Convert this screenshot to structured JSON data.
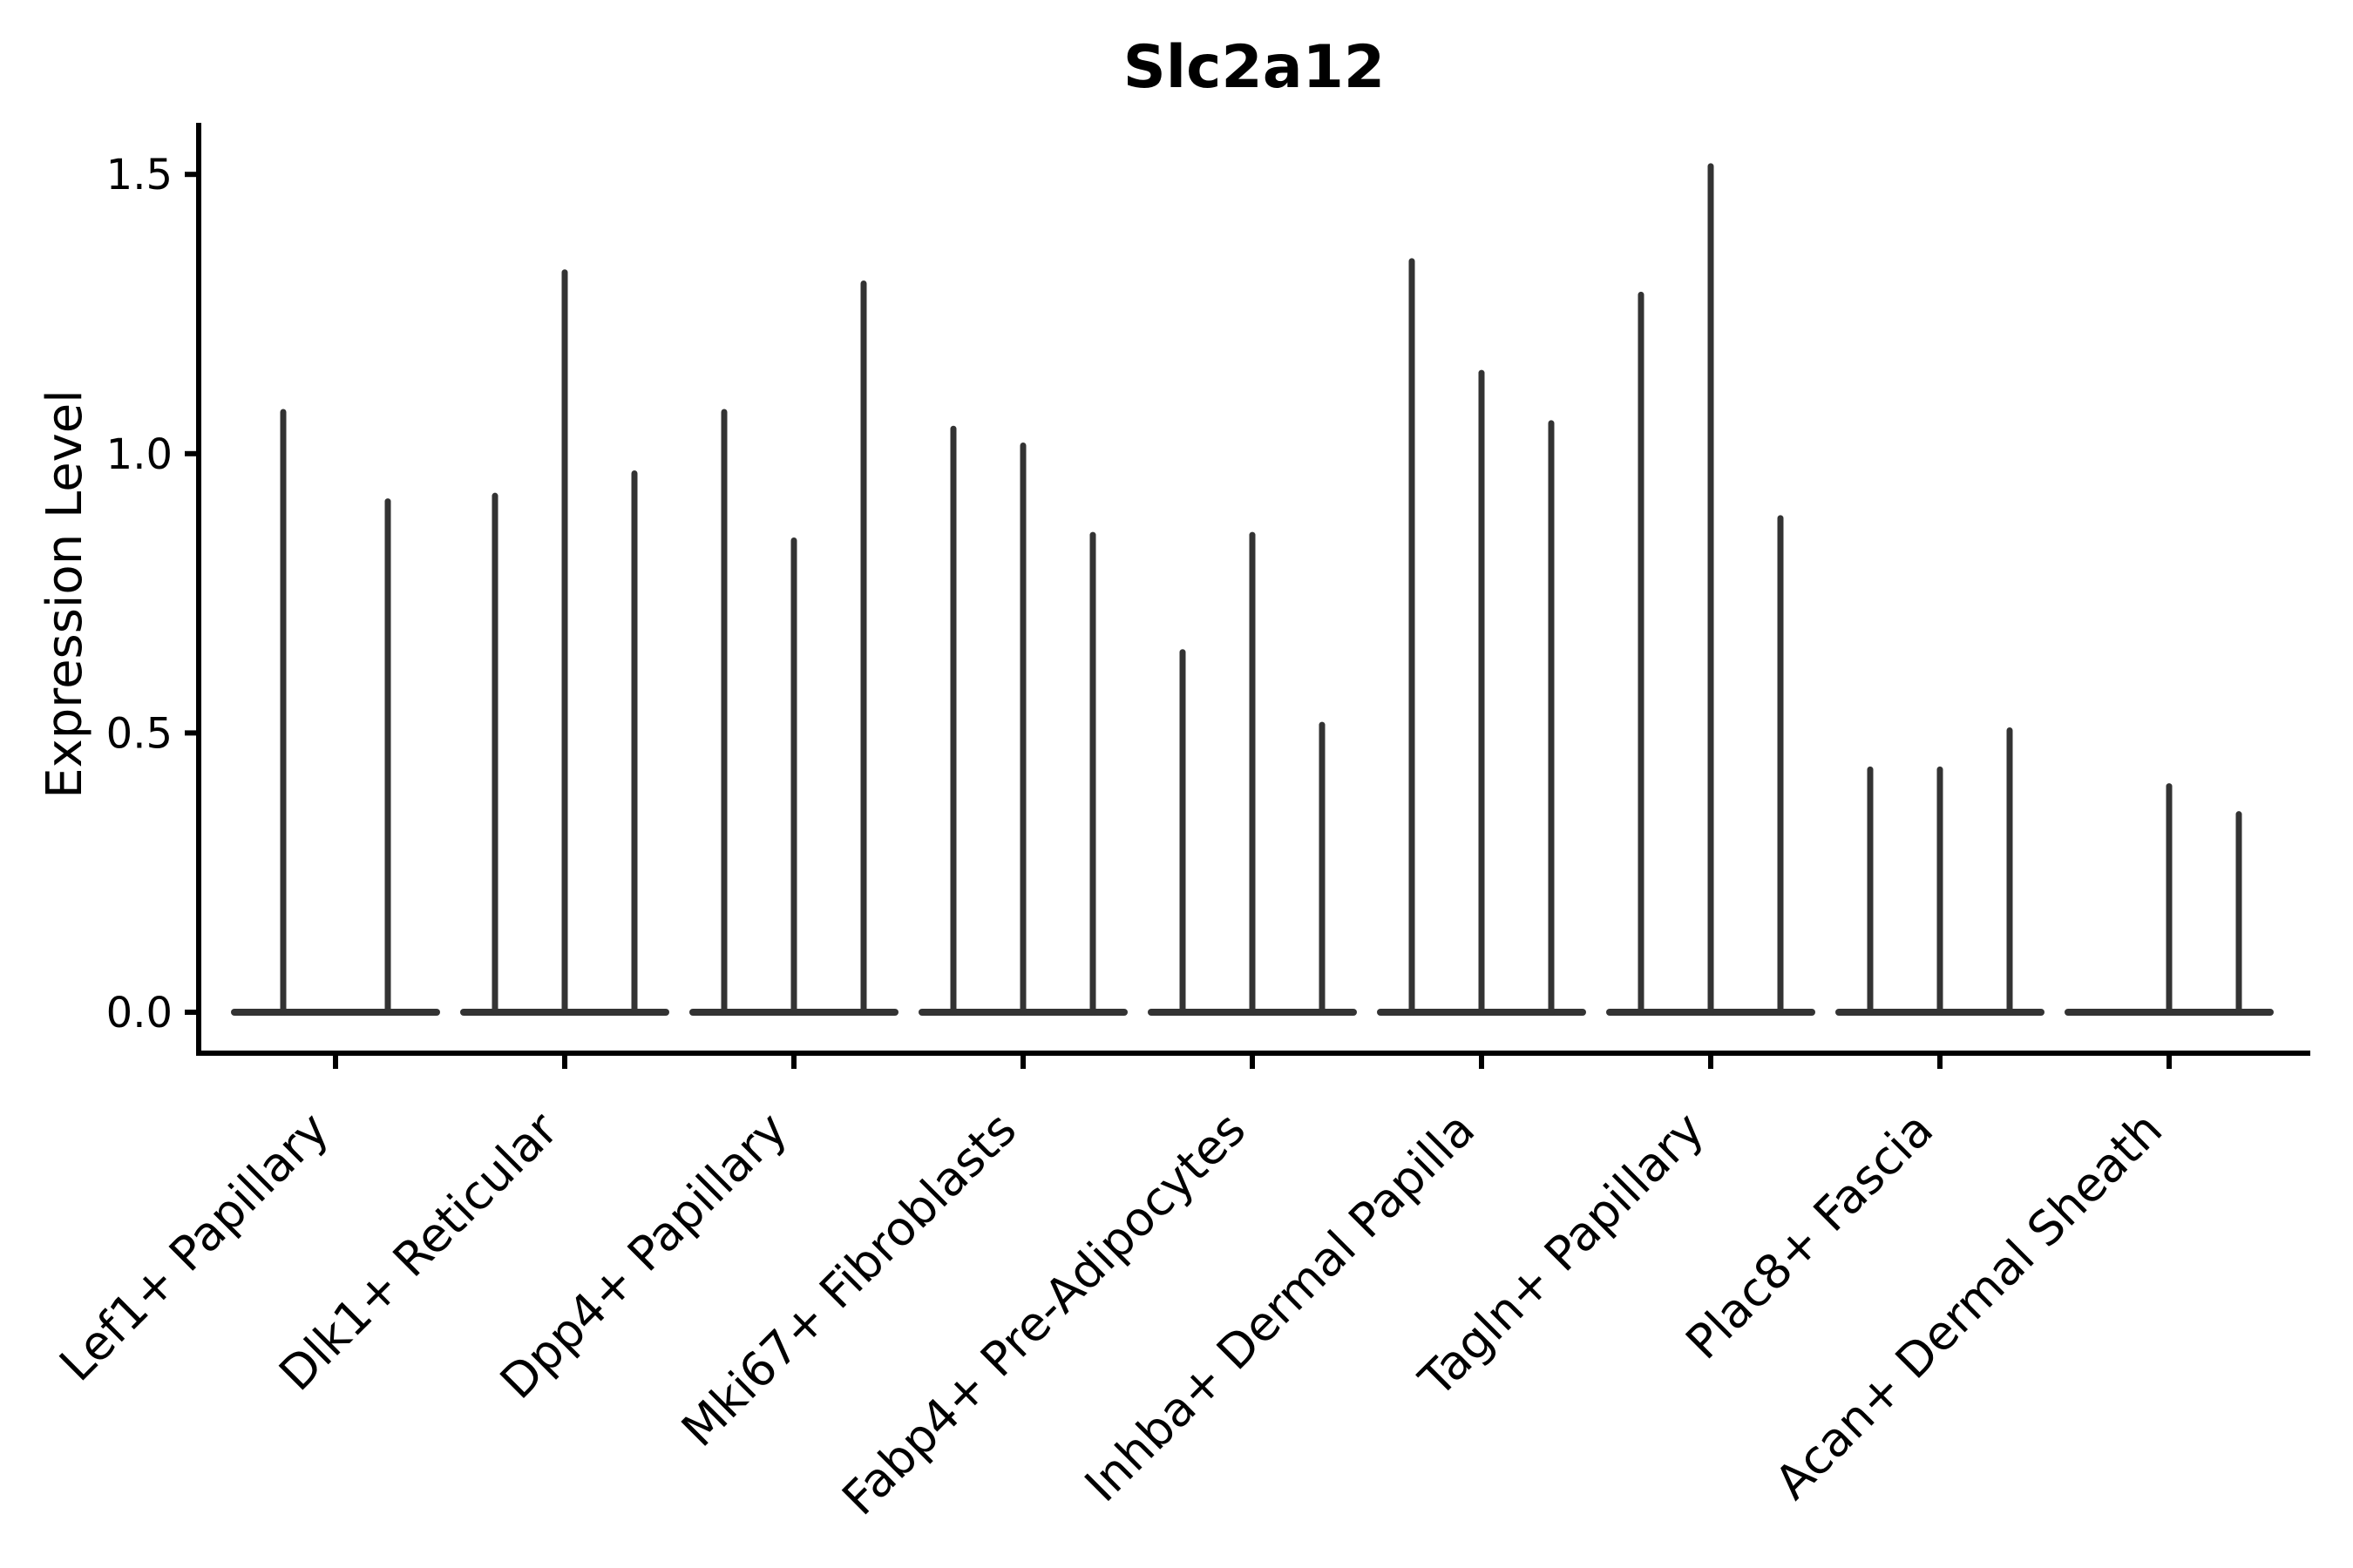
{
  "chart_data": {
    "type": "violin",
    "title": "Slc2a12",
    "y_axis": {
      "label": "Expression Level",
      "ticks": [
        {
          "value": 0.0,
          "label": "0.0"
        },
        {
          "value": 0.5,
          "label": "0.5"
        },
        {
          "value": 1.0,
          "label": "1.0"
        },
        {
          "value": 1.5,
          "label": "1.5"
        }
      ],
      "range": [
        -0.07,
        1.59
      ]
    },
    "x_axis": {
      "label": "",
      "tick_rotation_deg": 45
    },
    "grid": false,
    "legend": "none",
    "violin_description": "needle violins: expression mass concentrated at 0 with a thin spike up to the max expressing cell",
    "violins": [
      {
        "category": "Lef1+ Papillary",
        "spike_max_values": [
          1.08,
          0.92
        ]
      },
      {
        "category": "Dlk1+ Reticular",
        "spike_max_values": [
          0.93,
          1.33,
          0.97
        ]
      },
      {
        "category": "Dpp4+ Papillary",
        "spike_max_values": [
          1.08,
          0.85,
          1.31
        ]
      },
      {
        "category": "Mki67+ Fibroblasts",
        "spike_max_values": [
          1.05,
          1.02,
          0.86
        ]
      },
      {
        "category": "Fabp4+ Pre-Adipocytes",
        "spike_max_values": [
          0.65,
          0.86,
          0.52
        ]
      },
      {
        "category": "Inhba+ Dermal Papilla",
        "spike_max_values": [
          1.35,
          1.15,
          1.06
        ]
      },
      {
        "category": "Tagln+ Papillary",
        "spike_max_values": [
          1.29,
          1.52,
          0.89
        ]
      },
      {
        "category": "Plac8+ Fascia",
        "spike_max_values": [
          0.44,
          0.44,
          0.51
        ]
      },
      {
        "category": "Acan+ Dermal Sheath",
        "spike_max_values": [
          null,
          0.41,
          0.36
        ]
      }
    ],
    "style": {
      "background": "#ffffff",
      "ink": "#000000",
      "violin_color": "#333333"
    }
  }
}
